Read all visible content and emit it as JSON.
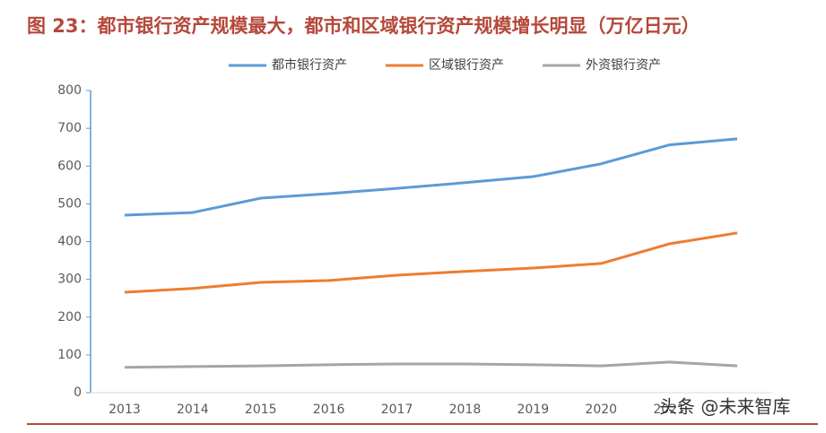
{
  "chart_data": {
    "type": "line",
    "title": "图 23：都市银行资产规模最大，都市和区域银行资产规模增长明显（万亿日元）",
    "categories": [
      "2013",
      "2014",
      "2015",
      "2016",
      "2017",
      "2018",
      "2019",
      "2020",
      "2021",
      null
    ],
    "series": [
      {
        "name": "都市银行资产",
        "color": "#5b9bd5",
        "values": [
          470,
          477,
          515,
          527,
          541,
          556,
          572,
          606,
          656,
          672
        ]
      },
      {
        "name": "区域银行资产",
        "color": "#ed7d31",
        "values": [
          266,
          276,
          292,
          297,
          311,
          321,
          330,
          342,
          394,
          423
        ]
      },
      {
        "name": "外资银行资产",
        "color": "#a5a5a5",
        "values": [
          67,
          69,
          71,
          74,
          76,
          76,
          74,
          71,
          81,
          71
        ]
      }
    ],
    "ylim": [
      0,
      800
    ],
    "yticks": [
      0,
      100,
      200,
      300,
      400,
      500,
      600,
      700,
      800
    ],
    "legend": "top",
    "watermark": "头条 @未来智库"
  }
}
